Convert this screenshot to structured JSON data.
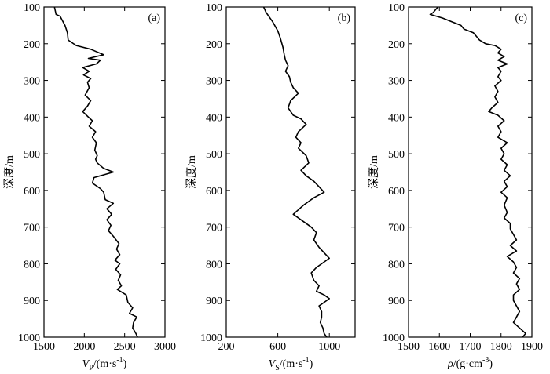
{
  "chart_data": [
    {
      "type": "line",
      "panel_label": "(a)",
      "ylabel": "深度/m",
      "xlabel": {
        "symbol": "V",
        "sub": "P",
        "unit": "/(m·s",
        "sup": "-1",
        "close": ")"
      },
      "xlim": [
        1500,
        3000
      ],
      "ylim": [
        100,
        1000
      ],
      "y_inverted": true,
      "x_ticks": [
        1500,
        2000,
        2500,
        3000
      ],
      "y_ticks": [
        100,
        200,
        300,
        400,
        500,
        600,
        700,
        800,
        900,
        1000
      ],
      "points": [
        [
          1630,
          100
        ],
        [
          1650,
          120
        ],
        [
          1700,
          125
        ],
        [
          1760,
          150
        ],
        [
          1790,
          170
        ],
        [
          1800,
          190
        ],
        [
          1900,
          205
        ],
        [
          2080,
          215
        ],
        [
          2240,
          230
        ],
        [
          2050,
          240
        ],
        [
          2200,
          245
        ],
        [
          2150,
          255
        ],
        [
          1980,
          265
        ],
        [
          2060,
          275
        ],
        [
          1990,
          285
        ],
        [
          2080,
          295
        ],
        [
          2040,
          305
        ],
        [
          2060,
          320
        ],
        [
          2010,
          340
        ],
        [
          2080,
          355
        ],
        [
          2040,
          370
        ],
        [
          1980,
          385
        ],
        [
          2050,
          400
        ],
        [
          2100,
          410
        ],
        [
          2060,
          425
        ],
        [
          2140,
          440
        ],
        [
          2100,
          455
        ],
        [
          2150,
          470
        ],
        [
          2130,
          490
        ],
        [
          2160,
          505
        ],
        [
          2140,
          515
        ],
        [
          2160,
          525
        ],
        [
          2240,
          540
        ],
        [
          2360,
          550
        ],
        [
          2120,
          565
        ],
        [
          2100,
          580
        ],
        [
          2200,
          595
        ],
        [
          2240,
          605
        ],
        [
          2260,
          625
        ],
        [
          2360,
          635
        ],
        [
          2280,
          650
        ],
        [
          2340,
          665
        ],
        [
          2280,
          680
        ],
        [
          2330,
          695
        ],
        [
          2300,
          710
        ],
        [
          2360,
          725
        ],
        [
          2430,
          745
        ],
        [
          2400,
          760
        ],
        [
          2440,
          775
        ],
        [
          2380,
          790
        ],
        [
          2440,
          800
        ],
        [
          2390,
          815
        ],
        [
          2450,
          830
        ],
        [
          2420,
          845
        ],
        [
          2460,
          860
        ],
        [
          2410,
          870
        ],
        [
          2520,
          885
        ],
        [
          2540,
          905
        ],
        [
          2600,
          920
        ],
        [
          2560,
          935
        ],
        [
          2650,
          945
        ],
        [
          2610,
          960
        ],
        [
          2600,
          975
        ],
        [
          2640,
          990
        ],
        [
          2660,
          1000
        ]
      ]
    },
    {
      "type": "line",
      "panel_label": "(b)",
      "ylabel": "深度/m",
      "xlabel": {
        "symbol": "V",
        "sub": "S",
        "unit": "/(m·s",
        "sup": "-1",
        "close": ")"
      },
      "xlim": [
        200,
        1200
      ],
      "ylim": [
        100,
        1000
      ],
      "y_inverted": true,
      "x_ticks": [
        200,
        600,
        1000
      ],
      "y_ticks": [
        100,
        200,
        300,
        400,
        500,
        600,
        700,
        800,
        900,
        1000
      ],
      "points": [
        [
          490,
          100
        ],
        [
          510,
          115
        ],
        [
          560,
          140
        ],
        [
          600,
          165
        ],
        [
          620,
          185
        ],
        [
          640,
          210
        ],
        [
          650,
          230
        ],
        [
          660,
          245
        ],
        [
          680,
          260
        ],
        [
          660,
          275
        ],
        [
          690,
          290
        ],
        [
          700,
          305
        ],
        [
          720,
          320
        ],
        [
          760,
          335
        ],
        [
          700,
          355
        ],
        [
          680,
          375
        ],
        [
          720,
          395
        ],
        [
          780,
          405
        ],
        [
          820,
          420
        ],
        [
          760,
          440
        ],
        [
          740,
          455
        ],
        [
          780,
          470
        ],
        [
          760,
          485
        ],
        [
          820,
          505
        ],
        [
          840,
          525
        ],
        [
          780,
          545
        ],
        [
          820,
          560
        ],
        [
          880,
          575
        ],
        [
          920,
          590
        ],
        [
          960,
          605
        ],
        [
          880,
          620
        ],
        [
          800,
          640
        ],
        [
          720,
          665
        ],
        [
          780,
          680
        ],
        [
          860,
          700
        ],
        [
          900,
          715
        ],
        [
          880,
          735
        ],
        [
          920,
          755
        ],
        [
          960,
          770
        ],
        [
          1000,
          785
        ],
        [
          960,
          795
        ],
        [
          900,
          810
        ],
        [
          860,
          825
        ],
        [
          880,
          845
        ],
        [
          920,
          860
        ],
        [
          900,
          875
        ],
        [
          960,
          885
        ],
        [
          1000,
          895
        ],
        [
          960,
          905
        ],
        [
          920,
          915
        ],
        [
          940,
          930
        ],
        [
          940,
          945
        ],
        [
          930,
          960
        ],
        [
          950,
          975
        ],
        [
          960,
          990
        ],
        [
          980,
          1000
        ]
      ]
    },
    {
      "type": "line",
      "panel_label": "(c)",
      "ylabel": "深度/m",
      "xlabel": {
        "symbol": "ρ",
        "sub": "",
        "unit": "/(g·cm",
        "sup": "-3",
        "close": ")"
      },
      "xlim": [
        1500,
        1900
      ],
      "ylim": [
        100,
        1000
      ],
      "y_inverted": true,
      "x_ticks": [
        1500,
        1600,
        1700,
        1800,
        1900
      ],
      "y_ticks": [
        100,
        200,
        300,
        400,
        500,
        600,
        700,
        800,
        900,
        1000
      ],
      "points": [
        [
          1595,
          100
        ],
        [
          1580,
          115
        ],
        [
          1570,
          120
        ],
        [
          1610,
          130
        ],
        [
          1640,
          140
        ],
        [
          1670,
          150
        ],
        [
          1680,
          160
        ],
        [
          1710,
          170
        ],
        [
          1720,
          180
        ],
        [
          1730,
          190
        ],
        [
          1750,
          200
        ],
        [
          1780,
          205
        ],
        [
          1800,
          215
        ],
        [
          1790,
          225
        ],
        [
          1810,
          235
        ],
        [
          1790,
          245
        ],
        [
          1820,
          255
        ],
        [
          1790,
          265
        ],
        [
          1800,
          275
        ],
        [
          1790,
          290
        ],
        [
          1800,
          300
        ],
        [
          1780,
          315
        ],
        [
          1790,
          330
        ],
        [
          1780,
          345
        ],
        [
          1790,
          360
        ],
        [
          1770,
          375
        ],
        [
          1760,
          385
        ],
        [
          1790,
          395
        ],
        [
          1810,
          410
        ],
        [
          1790,
          425
        ],
        [
          1800,
          440
        ],
        [
          1790,
          455
        ],
        [
          1820,
          470
        ],
        [
          1800,
          485
        ],
        [
          1810,
          500
        ],
        [
          1800,
          515
        ],
        [
          1820,
          530
        ],
        [
          1810,
          545
        ],
        [
          1830,
          560
        ],
        [
          1810,
          575
        ],
        [
          1820,
          590
        ],
        [
          1800,
          605
        ],
        [
          1820,
          620
        ],
        [
          1810,
          640
        ],
        [
          1820,
          660
        ],
        [
          1810,
          675
        ],
        [
          1830,
          690
        ],
        [
          1830,
          705
        ],
        [
          1840,
          720
        ],
        [
          1850,
          735
        ],
        [
          1830,
          750
        ],
        [
          1850,
          765
        ],
        [
          1820,
          780
        ],
        [
          1840,
          795
        ],
        [
          1850,
          810
        ],
        [
          1840,
          825
        ],
        [
          1860,
          840
        ],
        [
          1850,
          855
        ],
        [
          1860,
          870
        ],
        [
          1840,
          885
        ],
        [
          1840,
          900
        ],
        [
          1850,
          915
        ],
        [
          1860,
          930
        ],
        [
          1850,
          945
        ],
        [
          1840,
          960
        ],
        [
          1860,
          975
        ],
        [
          1880,
          990
        ],
        [
          1870,
          1000
        ]
      ]
    }
  ]
}
